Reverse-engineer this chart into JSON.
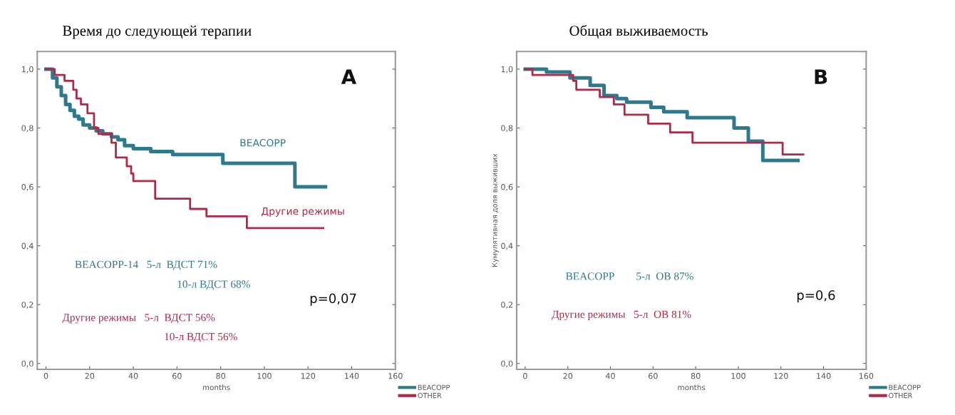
{
  "chart_data": [
    {
      "type": "step",
      "title": "Время до следующей терапии",
      "xlabel": "months",
      "xlim": [
        -4,
        160
      ],
      "ylim": [
        -0.02,
        1.06
      ],
      "xticks": [
        0,
        20,
        40,
        60,
        80,
        100,
        120,
        140,
        160
      ],
      "yticks": [
        {
          "value": 0,
          "label": "0,0"
        },
        {
          "value": 0.2,
          "label": "0,2"
        },
        {
          "value": 0.4,
          "label": "0,4"
        },
        {
          "value": 0.6,
          "label": "0,6"
        },
        {
          "value": 0.8,
          "label": "0,8"
        },
        {
          "value": 1.0,
          "label": "1,0"
        }
      ],
      "legend": "bottom right",
      "grid": false,
      "series": [
        {
          "name": "BEACOPP",
          "color": "#2e7a8c",
          "x": [
            0,
            3,
            5,
            7,
            9,
            11,
            13,
            15,
            17,
            20,
            23,
            26,
            30,
            33,
            36,
            40,
            48,
            58,
            81,
            114,
            128
          ],
          "values": [
            1.0,
            0.97,
            0.94,
            0.91,
            0.88,
            0.86,
            0.84,
            0.83,
            0.81,
            0.8,
            0.79,
            0.78,
            0.77,
            0.76,
            0.74,
            0.73,
            0.72,
            0.71,
            0.68,
            0.6,
            0.6
          ]
        },
        {
          "name": "OTHER",
          "color": "#b0284a",
          "x": [
            0,
            4,
            8.5,
            12.5,
            14,
            16,
            19,
            22,
            24,
            30,
            32,
            37,
            39,
            40,
            50,
            66,
            73.5,
            92,
            127
          ],
          "values": [
            1.0,
            0.98,
            0.96,
            0.93,
            0.9,
            0.88,
            0.85,
            0.8,
            0.78,
            0.75,
            0.7,
            0.67,
            0.645,
            0.62,
            0.56,
            0.525,
            0.5,
            0.46,
            0.46
          ]
        }
      ],
      "annotations": [
        "A",
        "BEACOPP",
        "Другие режимы",
        "BEACOPP-14   5-л  ВДСТ 71%",
        "10-л ВДСТ 68%",
        "p=0,07",
        "Другие режимы   5-л  ВДСТ 56%",
        "10-л ВДСТ 56%"
      ]
    },
    {
      "type": "step",
      "title": "Общая выживаемость",
      "xlabel": "months",
      "ylabel": "Кумулятивная доля выживших",
      "xlim": [
        -4,
        160
      ],
      "ylim": [
        -0.02,
        1.06
      ],
      "xticks": [
        0,
        20,
        40,
        60,
        80,
        100,
        120,
        140,
        160
      ],
      "yticks": [
        {
          "value": 0,
          "label": "0,0"
        },
        {
          "value": 0.2,
          "label": "0,2"
        },
        {
          "value": 0.4,
          "label": "0,4"
        },
        {
          "value": 0.6,
          "label": "0,6"
        },
        {
          "value": 0.8,
          "label": "0,8"
        },
        {
          "value": 1.0,
          "label": "1,0"
        }
      ],
      "legend": "bottom right",
      "grid": false,
      "series": [
        {
          "name": "BEACOPP",
          "color": "#2e7a8c",
          "x": [
            0,
            10,
            21,
            30.5,
            37,
            43,
            47.6,
            59,
            65,
            76,
            98,
            104.7,
            111.5,
            128
          ],
          "values": [
            1.0,
            0.99,
            0.97,
            0.945,
            0.91,
            0.9,
            0.888,
            0.87,
            0.855,
            0.835,
            0.8,
            0.755,
            0.69,
            0.69
          ]
        },
        {
          "name": "OTHER",
          "color": "#b0284a",
          "x": [
            0,
            3.4,
            22.5,
            24,
            35,
            41.6,
            46.6,
            57.7,
            68,
            78.5,
            120.8,
            130.5
          ],
          "values": [
            1.0,
            0.98,
            0.96,
            0.93,
            0.905,
            0.88,
            0.845,
            0.815,
            0.785,
            0.75,
            0.71,
            0.71
          ]
        }
      ],
      "annotations": [
        "B",
        "BEACOPP        5-л  ОВ 87%",
        "p=0,6",
        "Другие режимы   5-л  ОВ 81%"
      ]
    }
  ]
}
